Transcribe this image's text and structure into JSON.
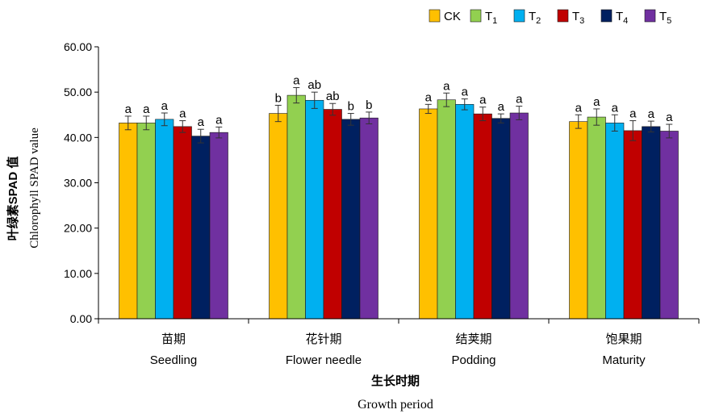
{
  "chart_data": {
    "type": "bar",
    "ylabel_cn": "叶绿素SPAD 值",
    "ylabel_en": "Chlorophyll SPAD value",
    "xlabel_cn": "生长时期",
    "xlabel_en": "Growth period",
    "ylim": [
      0,
      60
    ],
    "yticks": [
      "0.00",
      "10.00",
      "20.00",
      "30.00",
      "40.00",
      "50.00",
      "60.00"
    ],
    "grid": false,
    "legend_position": "top-right",
    "categories": [
      {
        "cn": "苗期",
        "en": "Seedling"
      },
      {
        "cn": "花针期",
        "en": "Flower needle"
      },
      {
        "cn": "结荚期",
        "en": "Podding"
      },
      {
        "cn": "饱果期",
        "en": "Maturity"
      }
    ],
    "series": [
      {
        "name": "CK",
        "sub": "",
        "color": "#FFC000",
        "values": [
          43.2,
          45.3,
          46.3,
          43.5
        ],
        "errors": [
          1.5,
          1.8,
          1.0,
          1.5
        ],
        "letters": [
          "a",
          "b",
          "a",
          "a"
        ]
      },
      {
        "name": "T",
        "sub": "1",
        "color": "#92D050",
        "values": [
          43.2,
          49.3,
          48.3,
          44.5
        ],
        "errors": [
          1.5,
          1.7,
          1.5,
          1.8
        ],
        "letters": [
          "a",
          "a",
          "a",
          "a"
        ]
      },
      {
        "name": "T",
        "sub": "2",
        "color": "#00B0F0",
        "values": [
          44.0,
          48.2,
          47.3,
          43.2
        ],
        "errors": [
          1.4,
          1.8,
          1.2,
          1.8
        ],
        "letters": [
          "a",
          "ab",
          "a",
          "a"
        ]
      },
      {
        "name": "T",
        "sub": "3",
        "color": "#C00000",
        "values": [
          42.4,
          46.2,
          45.2,
          41.5
        ],
        "errors": [
          1.3,
          1.3,
          1.5,
          2.2
        ],
        "letters": [
          "a",
          "ab",
          "a",
          "a"
        ]
      },
      {
        "name": "T",
        "sub": "4",
        "color": "#002060",
        "values": [
          40.3,
          44.0,
          44.2,
          42.4
        ],
        "errors": [
          1.5,
          1.3,
          1.0,
          1.2
        ],
        "letters": [
          "a",
          "b",
          "a",
          "a"
        ]
      },
      {
        "name": "T",
        "sub": "5",
        "color": "#7030A0",
        "values": [
          41.1,
          44.3,
          45.4,
          41.4
        ],
        "errors": [
          1.2,
          1.3,
          1.5,
          1.5
        ],
        "letters": [
          "a",
          "b",
          "a",
          "a"
        ]
      }
    ]
  }
}
